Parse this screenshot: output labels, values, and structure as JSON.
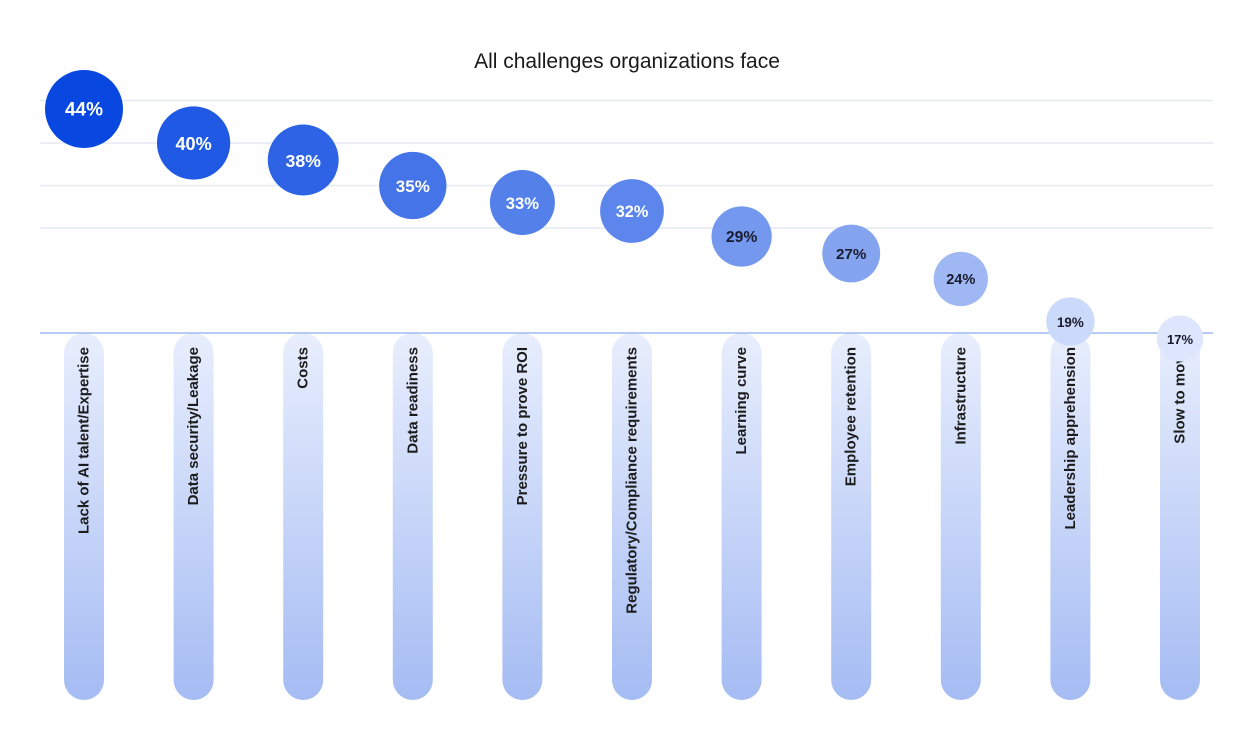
{
  "chart_data": {
    "type": "bubble",
    "title": "All challenges organizations face",
    "xlabel": "",
    "ylabel": "",
    "ylim": [
      12,
      48
    ],
    "grid": true,
    "legend": "none",
    "categories": [
      "Lack of AI talent/Expertise",
      "Data security/Leakage",
      "Costs",
      "Data readiness",
      "Pressure to prove ROI",
      "Regulatory/Compliance requirements",
      "Learning curve",
      "Employee retention",
      "Infrastructure",
      "Leadership apprehension",
      "Slow to move"
    ],
    "values": [
      44,
      40,
      38,
      35,
      33,
      32,
      29,
      27,
      24,
      19,
      17
    ],
    "value_labels": [
      "44%",
      "40%",
      "38%",
      "35%",
      "33%",
      "32%",
      "29%",
      "27%",
      "24%",
      "19%",
      "17%"
    ],
    "colors": {
      "strong": "#0847e0",
      "light": "#dde6fc",
      "text_light": "#ffffff",
      "text_dark": "#1a1a2e",
      "grid": "#e6e9f2",
      "baseline": "#9ebaf5",
      "column_top": "#e8eefd",
      "column_bottom": "#a5bcf3"
    }
  }
}
